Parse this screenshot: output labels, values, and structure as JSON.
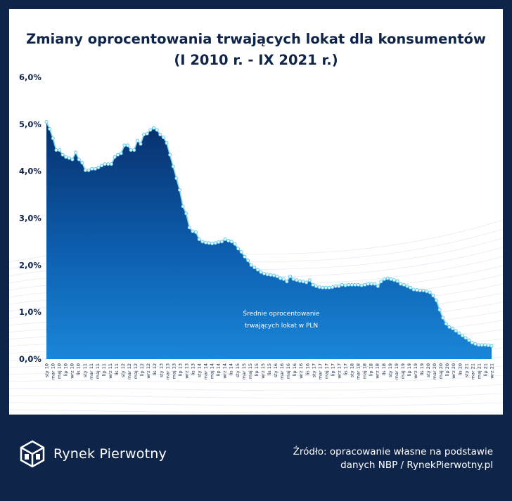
{
  "title": {
    "line1": "Zmiany oprocentowania trwających lokat dla konsumentów",
    "line2": "(I 2010 r. - IX 2021 r.)"
  },
  "chart_data": {
    "type": "area",
    "title": "Zmiany oprocentowania trwających lokat dla konsumentów (I 2010 r. - IX 2021 r.)",
    "series_label_lines": [
      "Średnie oprocentowanie",
      "trwających lokat w PLN"
    ],
    "ylim": [
      0,
      6
    ],
    "y_ticks": [
      "0,0%",
      "1,0%",
      "2,0%",
      "3,0%",
      "4,0%",
      "5,0%",
      "6,0%"
    ],
    "x_tick_labels": [
      "sty 10",
      "mar 10",
      "maj 10",
      "lip 10",
      "wrz 10",
      "lis 10",
      "sty 11",
      "mar 11",
      "maj 11",
      "lip 11",
      "wrz 11",
      "lis 11",
      "sty 12",
      "mar 12",
      "maj 12",
      "lip 12",
      "wrz 12",
      "lis 12",
      "sty 13",
      "mar 13",
      "maj 13",
      "lip 13",
      "wrz 13",
      "lis 13",
      "sty 14",
      "mar 14",
      "maj 14",
      "lip 14",
      "wrz 14",
      "lis 14",
      "sty 15",
      "mar 15",
      "maj 15",
      "lip 15",
      "wrz 15",
      "lis 15",
      "sty 16",
      "mar 16",
      "maj 16",
      "lip 16",
      "wrz 16",
      "lis 16",
      "sty 17",
      "mar 17",
      "maj 17",
      "lip 17",
      "wrz 17",
      "lis 17",
      "sty 18",
      "mar 18",
      "maj 18",
      "lip 18",
      "wrz 18",
      "lis 18",
      "sty 19",
      "mar 19",
      "maj 19",
      "lip 19",
      "wrz 19",
      "lis 19",
      "sty 20",
      "mar 20",
      "maj 20",
      "lip 20",
      "wrz 20",
      "lis 20",
      "sty 21",
      "mar 21",
      "maj 21",
      "lip 21",
      "wrz 21"
    ],
    "values": [
      5.05,
      4.9,
      4.7,
      4.45,
      4.45,
      4.35,
      4.3,
      4.28,
      4.25,
      4.4,
      4.25,
      4.18,
      4.02,
      4.02,
      4.05,
      4.05,
      4.08,
      4.12,
      4.15,
      4.15,
      4.15,
      4.3,
      4.35,
      4.38,
      4.55,
      4.55,
      4.45,
      4.45,
      4.65,
      4.58,
      4.78,
      4.8,
      4.88,
      4.92,
      4.88,
      4.78,
      4.72,
      4.6,
      4.35,
      4.1,
      3.85,
      3.6,
      3.25,
      3.1,
      2.8,
      2.72,
      2.7,
      2.55,
      2.5,
      2.48,
      2.47,
      2.46,
      2.47,
      2.49,
      2.5,
      2.55,
      2.52,
      2.5,
      2.45,
      2.35,
      2.28,
      2.18,
      2.1,
      2.0,
      1.95,
      1.9,
      1.85,
      1.82,
      1.8,
      1.79,
      1.78,
      1.76,
      1.72,
      1.7,
      1.65,
      1.76,
      1.7,
      1.68,
      1.66,
      1.65,
      1.63,
      1.68,
      1.58,
      1.55,
      1.53,
      1.52,
      1.52,
      1.52,
      1.53,
      1.55,
      1.55,
      1.58,
      1.57,
      1.58,
      1.58,
      1.58,
      1.58,
      1.57,
      1.58,
      1.6,
      1.6,
      1.6,
      1.55,
      1.65,
      1.7,
      1.72,
      1.7,
      1.68,
      1.66,
      1.6,
      1.58,
      1.55,
      1.52,
      1.48,
      1.47,
      1.46,
      1.46,
      1.44,
      1.42,
      1.35,
      1.25,
      1.05,
      0.88,
      0.75,
      0.68,
      0.65,
      0.6,
      0.55,
      0.5,
      0.45,
      0.4,
      0.35,
      0.32,
      0.3,
      0.3,
      0.3,
      0.29,
      0.28
    ]
  },
  "footer": {
    "brand": "Rynek Pierwotny",
    "source_line1": "Źródło: opracowanie własne na podstawie",
    "source_line2": "danych NBP / RynekPierwotny.pl"
  },
  "colors": {
    "background": "#0f2449",
    "area_top": "#0a3f86",
    "area_bottom": "#1a86d8",
    "line": "#7fd6f0",
    "marker": "#e6f7fd"
  }
}
